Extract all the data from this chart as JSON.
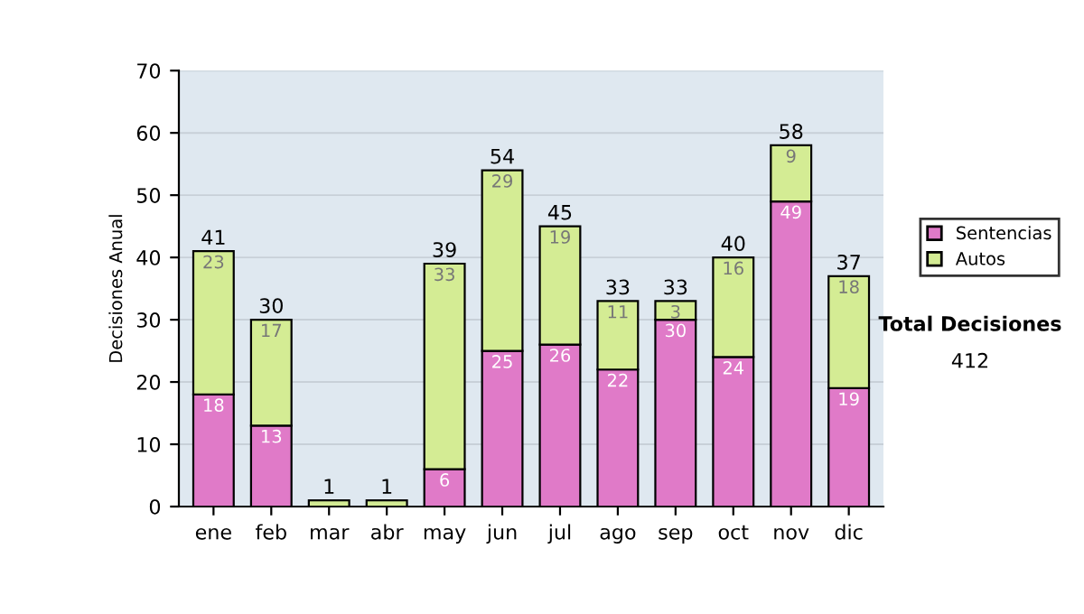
{
  "chart_data": {
    "type": "bar",
    "stacked": true,
    "ylabel": "Decisiones Anual",
    "categories": [
      "ene",
      "feb",
      "mar",
      "abr",
      "may",
      "jun",
      "jul",
      "ago",
      "sep",
      "oct",
      "nov",
      "dic"
    ],
    "series": [
      {
        "name": "Sentencias",
        "color": "#e07ac8",
        "values": [
          18,
          13,
          0,
          0,
          6,
          25,
          26,
          22,
          30,
          24,
          49,
          19
        ],
        "value_labels": [
          "18",
          "13",
          null,
          null,
          "6",
          "25",
          "26",
          "22",
          "30",
          "24",
          "49",
          "19"
        ]
      },
      {
        "name": "Autos",
        "color": "#d4ec94",
        "values": [
          23,
          17,
          1,
          1,
          33,
          29,
          19,
          11,
          3,
          16,
          9,
          18
        ],
        "value_labels": [
          "23",
          "17",
          null,
          null,
          "33",
          "29",
          "19",
          "11",
          "3",
          "16",
          "9",
          "18"
        ]
      }
    ],
    "totals": [
      "41",
      "30",
      "1",
      "1",
      "39",
      "54",
      "45",
      "33",
      "33",
      "40",
      "58",
      "37"
    ],
    "ylim": [
      0,
      70
    ],
    "yticks": [
      0,
      10,
      20,
      30,
      40,
      50,
      60,
      70
    ],
    "grid": "y",
    "legend": "right",
    "annotations": [
      "Total Decisiones",
      "412"
    ]
  }
}
